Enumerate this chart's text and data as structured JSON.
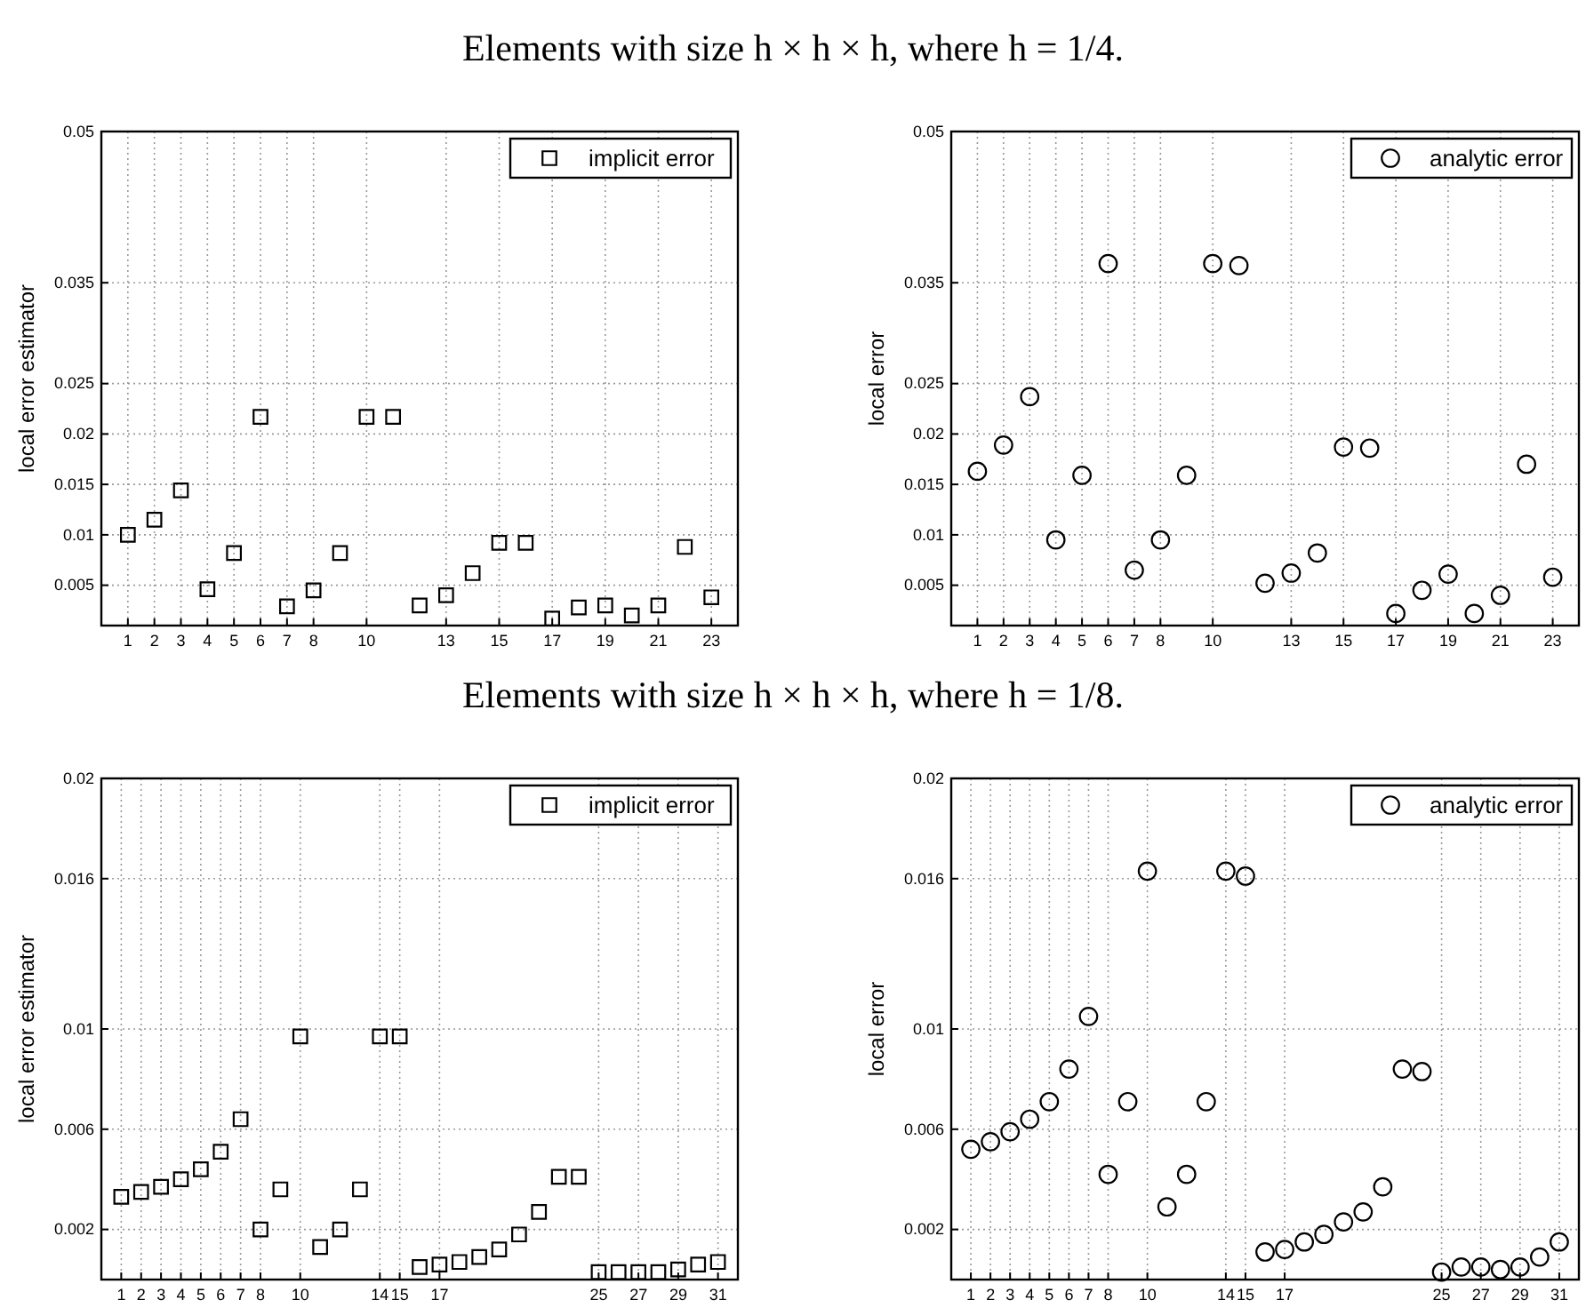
{
  "chart_data": [
    {
      "type": "scatter",
      "title": "Elements with size h × h × h, where h = 1/4.",
      "ylabel": "local error estimator",
      "x": [
        1,
        2,
        3,
        4,
        5,
        6,
        7,
        8,
        9,
        10,
        11,
        12,
        13,
        14,
        15,
        16,
        17,
        18,
        19,
        20,
        21,
        22,
        23
      ],
      "xlim": [
        0,
        24
      ],
      "xticks": [
        1,
        2,
        3,
        4,
        5,
        6,
        7,
        8,
        10,
        13,
        15,
        17,
        19,
        21,
        23
      ],
      "ylim": [
        0.001,
        0.05
      ],
      "yticks": [
        0.005,
        0.01,
        0.015,
        0.02,
        0.025,
        0.035,
        0.05
      ],
      "grid": true,
      "legend": "top right",
      "marker": "square",
      "series": [
        {
          "name": "implicit error",
          "color": "#000000",
          "values": [
            0.01,
            0.0115,
            0.0144,
            0.0046,
            0.0082,
            0.0217,
            0.0029,
            0.0045,
            0.0082,
            0.0217,
            0.0217,
            0.003,
            0.004,
            0.0062,
            0.0092,
            0.0092,
            0.0017,
            0.0028,
            0.003,
            0.002,
            0.003,
            0.0088,
            0.0038
          ]
        }
      ]
    },
    {
      "type": "scatter",
      "ylabel": "local error",
      "x": [
        1,
        2,
        3,
        4,
        5,
        6,
        7,
        8,
        9,
        10,
        11,
        12,
        13,
        14,
        15,
        16,
        17,
        18,
        19,
        20,
        21,
        22,
        23
      ],
      "xlim": [
        0,
        24
      ],
      "xticks": [
        1,
        2,
        3,
        4,
        5,
        6,
        7,
        8,
        10,
        13,
        15,
        17,
        19,
        21,
        23
      ],
      "ylim": [
        0.001,
        0.05
      ],
      "yticks": [
        0.005,
        0.01,
        0.015,
        0.02,
        0.025,
        0.035,
        0.05
      ],
      "grid": true,
      "legend": "top right",
      "marker": "circle",
      "series": [
        {
          "name": "analytic error",
          "color": "#000000",
          "values": [
            0.0163,
            0.0189,
            0.0237,
            0.0095,
            0.0159,
            0.0369,
            0.0065,
            0.0095,
            0.0159,
            0.0369,
            0.0367,
            0.0052,
            0.0062,
            0.0082,
            0.0187,
            0.0186,
            0.0022,
            0.0045,
            0.0061,
            0.0022,
            0.004,
            0.017,
            0.0058
          ]
        }
      ]
    },
    {
      "type": "scatter",
      "title": "Elements with size h × h × h, where h = 1/8.",
      "ylabel": "local error estimator",
      "x": [
        1,
        2,
        3,
        4,
        5,
        6,
        7,
        8,
        9,
        10,
        11,
        12,
        13,
        14,
        15,
        16,
        17,
        18,
        19,
        20,
        21,
        22,
        23,
        24,
        25,
        26,
        27,
        28,
        29,
        30,
        31
      ],
      "xlim": [
        0,
        32
      ],
      "xticks": [
        1,
        2,
        3,
        4,
        5,
        6,
        7,
        8,
        10,
        14,
        15,
        17,
        25,
        27,
        29,
        31
      ],
      "ylim": [
        0,
        0.02
      ],
      "yticks": [
        0.002,
        0.006,
        0.01,
        0.016,
        0.02
      ],
      "grid": true,
      "legend": "top right",
      "marker": "square",
      "series": [
        {
          "name": "implicit error",
          "color": "#000000",
          "values": [
            0.0033,
            0.0035,
            0.0037,
            0.004,
            0.0044,
            0.0051,
            0.0064,
            0.002,
            0.0036,
            0.0097,
            0.0013,
            0.002,
            0.0036,
            0.0097,
            0.0097,
            0.0005,
            0.0006,
            0.0007,
            0.0009,
            0.0012,
            0.0018,
            0.0027,
            0.0041,
            0.0041,
            0.0003,
            0.0003,
            0.0003,
            0.0003,
            0.0004,
            0.0006,
            0.0007
          ]
        }
      ]
    },
    {
      "type": "scatter",
      "ylabel": "local error",
      "x": [
        1,
        2,
        3,
        4,
        5,
        6,
        7,
        8,
        9,
        10,
        11,
        12,
        13,
        14,
        15,
        16,
        17,
        18,
        19,
        20,
        21,
        22,
        23,
        24,
        25,
        26,
        27,
        28,
        29,
        30,
        31
      ],
      "xlim": [
        0,
        32
      ],
      "xticks": [
        1,
        2,
        3,
        4,
        5,
        6,
        7,
        8,
        10,
        14,
        15,
        17,
        25,
        27,
        29,
        31
      ],
      "ylim": [
        0,
        0.02
      ],
      "yticks": [
        0.002,
        0.006,
        0.01,
        0.016,
        0.02
      ],
      "grid": true,
      "legend": "top right",
      "marker": "circle",
      "series": [
        {
          "name": "analytic error",
          "color": "#000000",
          "values": [
            0.0052,
            0.0055,
            0.0059,
            0.0064,
            0.0071,
            0.0084,
            0.0105,
            0.0042,
            0.0071,
            0.0163,
            0.0029,
            0.0042,
            0.0071,
            0.0163,
            0.0161,
            0.0011,
            0.0012,
            0.0015,
            0.0018,
            0.0023,
            0.0027,
            0.0037,
            0.0084,
            0.0083,
            0.0003,
            0.0005,
            0.0005,
            0.0004,
            0.0005,
            0.0009,
            0.0015
          ]
        }
      ]
    }
  ]
}
